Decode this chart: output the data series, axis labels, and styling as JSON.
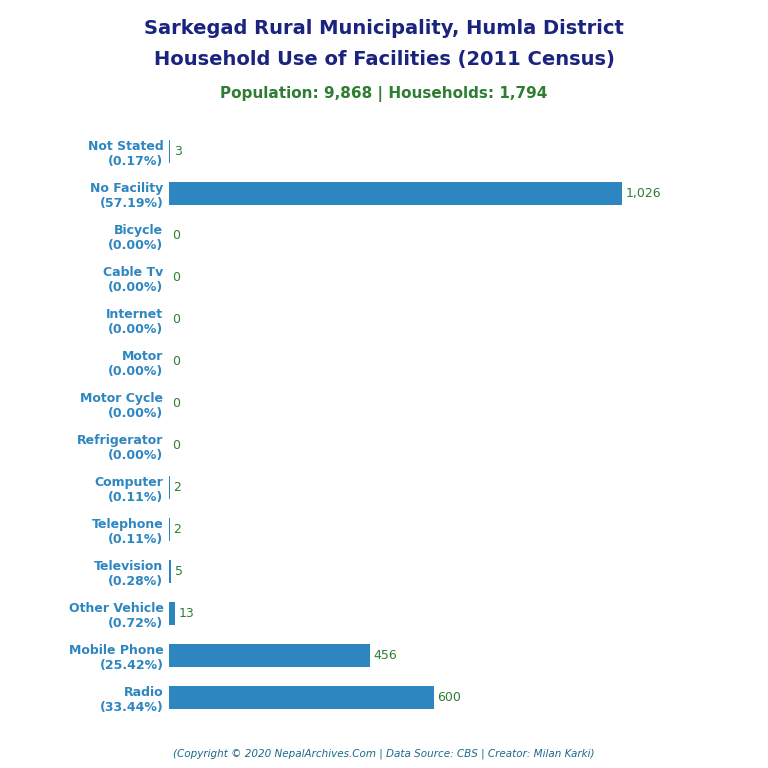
{
  "title_line1": "Sarkegad Rural Municipality, Humla District",
  "title_line2": "Household Use of Facilities (2011 Census)",
  "subtitle": "Population: 9,868 | Households: 1,794",
  "footer": "(Copyright © 2020 NepalArchives.Com | Data Source: CBS | Creator: Milan Karki)",
  "categories": [
    "Not Stated\n(0.17%)",
    "No Facility\n(57.19%)",
    "Bicycle\n(0.00%)",
    "Cable Tv\n(0.00%)",
    "Internet\n(0.00%)",
    "Motor\n(0.00%)",
    "Motor Cycle\n(0.00%)",
    "Refrigerator\n(0.00%)",
    "Computer\n(0.11%)",
    "Telephone\n(0.11%)",
    "Television\n(0.28%)",
    "Other Vehicle\n(0.72%)",
    "Mobile Phone\n(25.42%)",
    "Radio\n(33.44%)"
  ],
  "values": [
    3,
    1026,
    0,
    0,
    0,
    0,
    0,
    0,
    2,
    2,
    5,
    13,
    456,
    600
  ],
  "bar_color": "#2e86c1",
  "title_color": "#1a237e",
  "subtitle_color": "#2e7d32",
  "label_color": "#2e86c1",
  "value_color": "#2e7d32",
  "footer_color": "#1a6a8a",
  "background_color": "#ffffff",
  "ylabel_fontsize": 9,
  "value_fontsize": 9,
  "title_fontsize": 14,
  "subtitle_fontsize": 11
}
